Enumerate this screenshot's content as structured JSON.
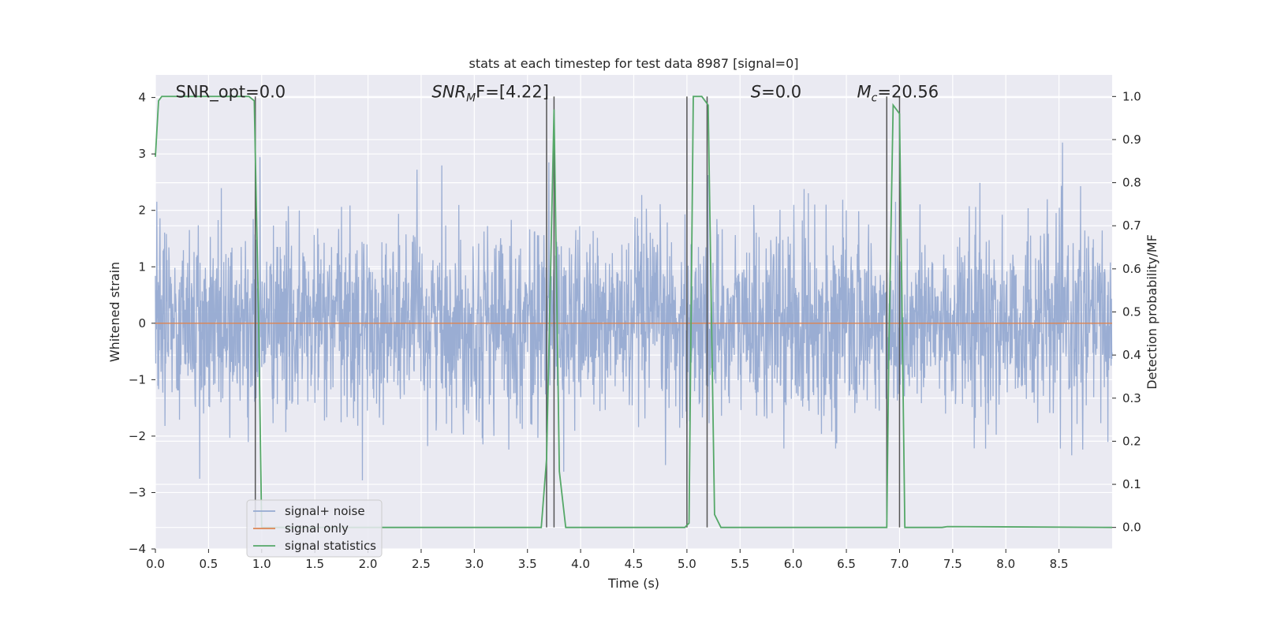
{
  "chart_data": {
    "type": "line",
    "title": "stats at each timestep for test data 8987 [signal=0]",
    "xlabel": "Time (s)",
    "ylabel": "Whitened strain",
    "y2label": "Detection probability/MF",
    "xlim": [
      0.0,
      9.0
    ],
    "ylim": [
      -4.0,
      4.4
    ],
    "y2lim": [
      -0.05,
      1.05
    ],
    "xticks": [
      "0.0",
      "0.5",
      "1.0",
      "1.5",
      "2.0",
      "2.5",
      "3.0",
      "3.5",
      "4.0",
      "4.5",
      "5.0",
      "5.5",
      "6.0",
      "6.5",
      "7.0",
      "7.5",
      "8.0",
      "8.5"
    ],
    "yticks": [
      "4",
      "3",
      "2",
      "1",
      "0",
      "−1",
      "−2",
      "−3",
      "−4"
    ],
    "y2ticks": [
      "1.0",
      "0.9",
      "0.8",
      "0.7",
      "0.6",
      "0.5",
      "0.4",
      "0.3",
      "0.2",
      "0.1",
      "0.0"
    ],
    "grid": true,
    "legend_position": "lower-left",
    "annotations": {
      "snr_opt": "SNR_opt=0.0",
      "snr_mf_sym": "SNR",
      "snr_mf_sub": "M",
      "snr_mf_rest": "F=[4.22]",
      "s_sym": "S",
      "s_rest": "=0.0",
      "mc_sym": "M",
      "mc_sub": "c",
      "mc_rest": "=20.56"
    },
    "series": [
      {
        "name": "signal+ noise",
        "color": "#96aad1",
        "axis": "left",
        "kind": "noise",
        "std": 0.62,
        "n_samples": 2700,
        "range": [
          -3.7,
          4.0
        ]
      },
      {
        "name": "signal only",
        "color": "#dd8452",
        "axis": "left",
        "x": [
          0.0,
          9.0
        ],
        "y": [
          0.0,
          0.0
        ]
      },
      {
        "name": "signal statistics",
        "color": "#55a868",
        "axis": "right",
        "x": [
          0.0,
          0.03,
          0.06,
          0.1,
          0.88,
          0.93,
          0.97,
          1.0,
          3.63,
          3.68,
          3.75,
          3.8,
          3.86,
          4.98,
          5.02,
          5.06,
          5.14,
          5.2,
          5.26,
          5.32,
          6.88,
          6.9,
          6.94,
          7.0,
          7.05,
          7.4,
          7.45,
          9.0
        ],
        "y": [
          0.86,
          0.99,
          1.0,
          1.0,
          1.0,
          0.99,
          0.5,
          0.0,
          0.0,
          0.16,
          0.97,
          0.13,
          0.0,
          0.0,
          0.01,
          1.0,
          1.0,
          0.98,
          0.03,
          0.0,
          0.0,
          0.42,
          0.98,
          0.96,
          0.0,
          0.0,
          0.002,
          0.0
        ]
      }
    ],
    "vlines": [
      0.94,
      3.68,
      3.75,
      5.0,
      5.19,
      6.88,
      7.0
    ]
  }
}
